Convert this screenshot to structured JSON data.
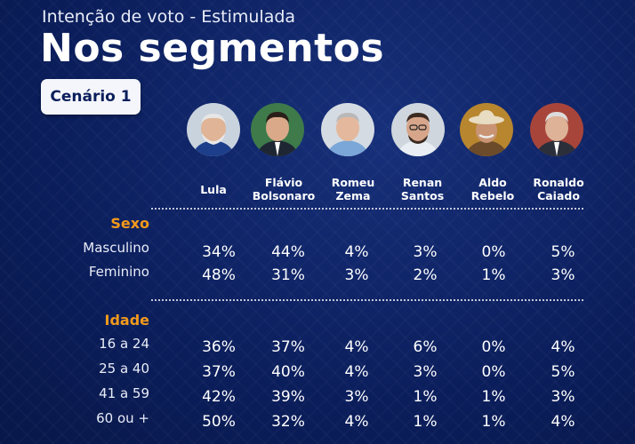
{
  "header": {
    "subtitle": "Intenção de voto - Estimulada",
    "title": "Nos segmentos",
    "scenario": "Cenário 1"
  },
  "chart_data": {
    "type": "table",
    "columns": [
      {
        "line1": "Lula",
        "line2": "",
        "icon": "lula-avatar"
      },
      {
        "line1": "Flávio",
        "line2": "Bolsonaro",
        "icon": "flavio-bolsonaro-avatar"
      },
      {
        "line1": "Romeu",
        "line2": "Zema",
        "icon": "romeu-zema-avatar"
      },
      {
        "line1": "Renan",
        "line2": "Santos",
        "icon": "renan-santos-avatar"
      },
      {
        "line1": "Aldo",
        "line2": "Rebelo",
        "icon": "aldo-rebelo-avatar"
      },
      {
        "line1": "Ronaldo",
        "line2": "Caiado",
        "icon": "ronaldo-caiado-avatar"
      }
    ],
    "sections": [
      {
        "name": "Sexo",
        "rows": [
          {
            "label": "Masculino",
            "values": [
              "34%",
              "44%",
              "4%",
              "3%",
              "0%",
              "5%"
            ]
          },
          {
            "label": "Feminino",
            "values": [
              "48%",
              "31%",
              "3%",
              "2%",
              "1%",
              "3%"
            ]
          }
        ]
      },
      {
        "name": "Idade",
        "rows": [
          {
            "label": "16 a 24",
            "values": [
              "36%",
              "37%",
              "4%",
              "6%",
              "0%",
              "4%"
            ]
          },
          {
            "label": "25 a 40",
            "values": [
              "37%",
              "40%",
              "4%",
              "3%",
              "0%",
              "5%"
            ]
          },
          {
            "label": "41 a 59",
            "values": [
              "42%",
              "39%",
              "3%",
              "1%",
              "1%",
              "3%"
            ]
          },
          {
            "label": "60 ou +",
            "values": [
              "50%",
              "32%",
              "4%",
              "1%",
              "1%",
              "4%"
            ]
          }
        ]
      }
    ]
  },
  "colors": {
    "background": "#0b1e5c",
    "section_accent": "#f39a1b",
    "badge_bg": "#f4f6fb"
  }
}
